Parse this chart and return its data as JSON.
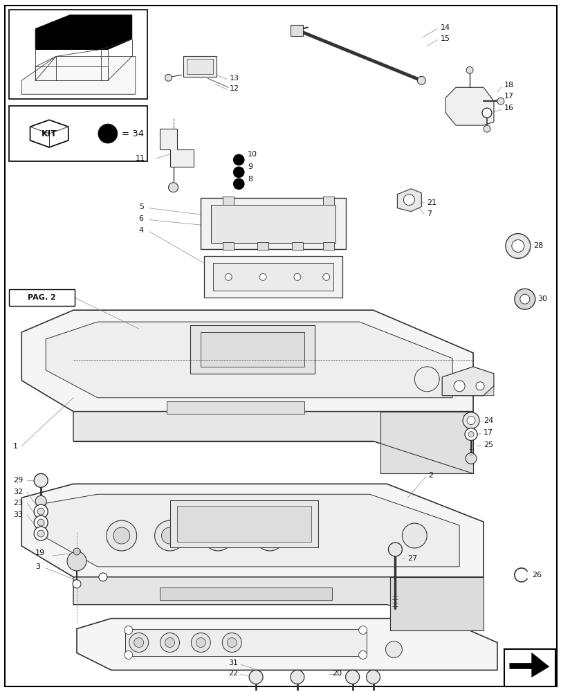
{
  "bg_color": "#ffffff",
  "line_color": "#555555",
  "dark_color": "#111111",
  "border_color": "#000000",
  "fig_width": 8.12,
  "fig_height": 10.0,
  "dpi": 100
}
